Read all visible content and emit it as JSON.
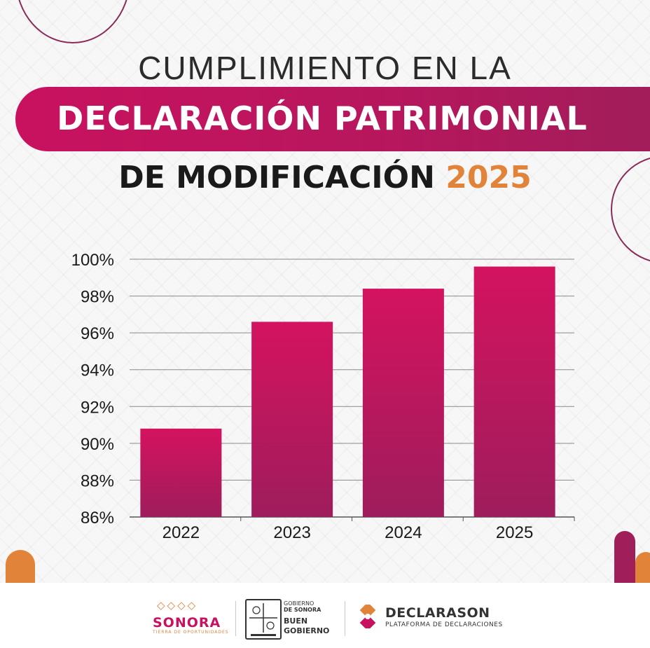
{
  "title": {
    "line1": "CUMPLIMIENTO EN LA",
    "line2": "DECLARACIÓN PATRIMONIAL",
    "line3": "DE MODIFICACIÓN",
    "year": "2025"
  },
  "chart_data": {
    "type": "bar",
    "categories": [
      "2022",
      "2023",
      "2024",
      "2025"
    ],
    "values": [
      90.8,
      96.6,
      98.4,
      99.6
    ],
    "ylim": [
      86,
      100
    ],
    "yticks": [
      86,
      88,
      90,
      92,
      94,
      96,
      98,
      100
    ],
    "ytick_labels": [
      "86%",
      "88%",
      "90%",
      "92%",
      "94%",
      "96%",
      "98%",
      "100%"
    ],
    "grid": true,
    "bar_color_top": "#d4135f",
    "bar_color_bottom": "#9e1d5c"
  },
  "footer": {
    "sonora_word": "SONORA",
    "sonora_tagline": "TIERRA DE OPORTUNIDADES",
    "gobierno_line1": "GOBIERNO",
    "gobierno_line2": "DE SONORA",
    "buen_line1": "BUEN",
    "buen_line2": "GOBIERNO",
    "declarason_name": "DECLARASON",
    "declarason_sub": "PLATAFORMA DE DECLARACIONES"
  },
  "colors": {
    "magenta": "#c9125f",
    "orange": "#e2833a",
    "dark": "#1a1a1a"
  }
}
